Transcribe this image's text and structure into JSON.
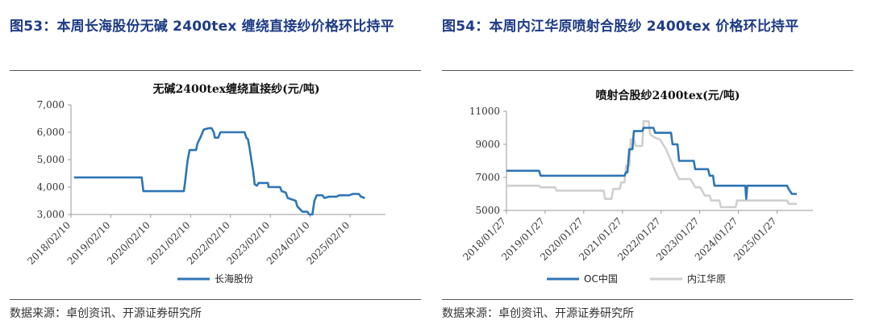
{
  "panels": [
    {
      "heading": "图53：本周长海股份无碱 2400tex 缠绕直接纱价格环比持平",
      "source": "数据来源：卓创资讯、开源证券研究所"
    },
    {
      "heading": "图54：本周内江华原喷射合股纱 2400tex 价格环比持平",
      "source": "数据来源：卓创资讯、开源证券研究所"
    }
  ],
  "chart_data": [
    {
      "type": "line",
      "title": "无碱2400tex缠绕直接纱(元/吨)",
      "xlabel": "",
      "ylabel": "",
      "ylim": [
        3000,
        7000
      ],
      "yticks": [
        3000,
        4000,
        5000,
        6000,
        7000
      ],
      "ytick_labels": [
        "3,000",
        "4,000",
        "5,000",
        "6,000",
        "7,000"
      ],
      "xlim": [
        "2018-02-10",
        "2025-12-31"
      ],
      "xtick_labels": [
        "2018/02/10",
        "2019/02/10",
        "2020/02/10",
        "2021/02/10",
        "2022/02/10",
        "2023/02/10",
        "2024/02/10",
        "2025/02/10"
      ],
      "grid": false,
      "legend": "bottom",
      "series": [
        {
          "name": "长海股份",
          "color": "#2e75b6",
          "points": [
            [
              "2018-03-10",
              4350
            ],
            [
              "2019-02-01",
              4350
            ],
            [
              "2019-11-20",
              4350
            ],
            [
              "2019-12-05",
              3850
            ],
            [
              "2020-12-10",
              3850
            ],
            [
              "2020-12-25",
              4300
            ],
            [
              "2021-01-05",
              4700
            ],
            [
              "2021-01-15",
              5000
            ],
            [
              "2021-02-01",
              5350
            ],
            [
              "2021-04-01",
              5350
            ],
            [
              "2021-04-15",
              5600
            ],
            [
              "2021-05-10",
              5800
            ],
            [
              "2021-06-10",
              6100
            ],
            [
              "2021-08-01",
              6150
            ],
            [
              "2021-08-20",
              6150
            ],
            [
              "2021-09-10",
              6000
            ],
            [
              "2021-09-20",
              5800
            ],
            [
              "2021-10-20",
              5800
            ],
            [
              "2021-11-10",
              6000
            ],
            [
              "2022-06-20",
              6000
            ],
            [
              "2022-07-05",
              5800
            ],
            [
              "2022-07-20",
              5750
            ],
            [
              "2022-08-05",
              5400
            ],
            [
              "2022-08-20",
              5000
            ],
            [
              "2022-09-05",
              4600
            ],
            [
              "2022-09-20",
              4100
            ],
            [
              "2022-10-10",
              4050
            ],
            [
              "2022-10-25",
              4150
            ],
            [
              "2023-01-20",
              4150
            ],
            [
              "2023-01-25",
              4000
            ],
            [
              "2023-05-10",
              4000
            ],
            [
              "2023-05-25",
              3850
            ],
            [
              "2023-07-01",
              3800
            ],
            [
              "2023-07-20",
              3600
            ],
            [
              "2023-10-01",
              3500
            ],
            [
              "2023-10-15",
              3300
            ],
            [
              "2023-12-01",
              3100
            ],
            [
              "2024-01-15",
              3100
            ],
            [
              "2024-02-01",
              3000
            ],
            [
              "2024-03-01",
              3000
            ],
            [
              "2024-03-20",
              3500
            ],
            [
              "2024-04-10",
              3700
            ],
            [
              "2024-06-01",
              3700
            ],
            [
              "2024-06-20",
              3600
            ],
            [
              "2024-08-01",
              3650
            ],
            [
              "2024-10-10",
              3650
            ],
            [
              "2024-11-01",
              3700
            ],
            [
              "2025-02-01",
              3700
            ],
            [
              "2025-03-10",
              3750
            ],
            [
              "2025-05-01",
              3750
            ],
            [
              "2025-05-20",
              3650
            ],
            [
              "2025-06-25",
              3600
            ]
          ]
        }
      ]
    },
    {
      "type": "line",
      "title": "喷射合股纱2400tex(元/吨)",
      "xlabel": "",
      "ylabel": "",
      "ylim": [
        5000,
        11000
      ],
      "yticks": [
        5000,
        7000,
        9000,
        11000
      ],
      "ytick_labels": [
        "5000",
        "7000",
        "9000",
        "11000"
      ],
      "xlim": [
        "2018-01-27",
        "2025-12-31"
      ],
      "xtick_labels": [
        "2018/01/27",
        "2019/01/27",
        "2020/01/27",
        "2021/01/27",
        "2022/01/27",
        "2023/01/27",
        "2024/01/27",
        "2025/01/27"
      ],
      "grid": false,
      "legend": "bottom",
      "series": [
        {
          "name": "OC中国",
          "color": "#2e75b6",
          "points": [
            [
              "2018-01-27",
              7400
            ],
            [
              "2018-12-01",
              7400
            ],
            [
              "2018-12-15",
              7100
            ],
            [
              "2021-02-15",
              7100
            ],
            [
              "2021-03-01",
              7300
            ],
            [
              "2021-03-15",
              7300
            ],
            [
              "2021-04-01",
              8700
            ],
            [
              "2021-05-01",
              8700
            ],
            [
              "2021-05-15",
              9800
            ],
            [
              "2021-08-01",
              9800
            ],
            [
              "2021-08-15",
              10000
            ],
            [
              "2021-11-15",
              10000
            ],
            [
              "2021-12-01",
              9700
            ],
            [
              "2022-05-01",
              9700
            ],
            [
              "2022-05-15",
              9000
            ],
            [
              "2022-07-01",
              9000
            ],
            [
              "2022-07-15",
              8000
            ],
            [
              "2022-12-01",
              8000
            ],
            [
              "2022-12-15",
              7500
            ],
            [
              "2023-04-15",
              7500
            ],
            [
              "2023-05-01",
              7100
            ],
            [
              "2023-06-01",
              7100
            ],
            [
              "2023-06-15",
              6500
            ],
            [
              "2024-04-01",
              6500
            ],
            [
              "2024-04-10",
              5700
            ],
            [
              "2024-04-20",
              6500
            ],
            [
              "2025-05-01",
              6500
            ],
            [
              "2025-05-15",
              6300
            ],
            [
              "2025-06-15",
              6000
            ],
            [
              "2025-08-01",
              6000
            ]
          ]
        },
        {
          "name": "内江华原",
          "color": "#cfcfcf",
          "points": [
            [
              "2018-01-27",
              6500
            ],
            [
              "2018-12-01",
              6500
            ],
            [
              "2018-12-15",
              6400
            ],
            [
              "2019-05-01",
              6400
            ],
            [
              "2019-05-15",
              6200
            ],
            [
              "2020-08-01",
              6200
            ],
            [
              "2020-08-15",
              5700
            ],
            [
              "2020-10-15",
              5700
            ],
            [
              "2020-11-01",
              6300
            ],
            [
              "2021-01-01",
              6300
            ],
            [
              "2021-01-15",
              6700
            ],
            [
              "2021-02-15",
              6700
            ],
            [
              "2021-03-01",
              7700
            ],
            [
              "2021-04-01",
              7700
            ],
            [
              "2021-04-15",
              9300
            ],
            [
              "2021-05-15",
              9300
            ],
            [
              "2021-06-01",
              8900
            ],
            [
              "2021-08-01",
              8900
            ],
            [
              "2021-08-15",
              10400
            ],
            [
              "2021-10-01",
              10400
            ],
            [
              "2021-10-15",
              9600
            ],
            [
              "2021-12-01",
              9400
            ],
            [
              "2022-01-15",
              9300
            ],
            [
              "2022-03-15",
              8700
            ],
            [
              "2022-05-01",
              8000
            ],
            [
              "2022-06-01",
              7500
            ],
            [
              "2022-07-15",
              6900
            ],
            [
              "2022-11-01",
              6900
            ],
            [
              "2022-12-15",
              6400
            ],
            [
              "2023-02-01",
              6400
            ],
            [
              "2023-03-15",
              5900
            ],
            [
              "2023-05-01",
              5900
            ],
            [
              "2023-05-15",
              5600
            ],
            [
              "2023-08-01",
              5600
            ],
            [
              "2023-08-15",
              5200
            ],
            [
              "2024-01-01",
              5200
            ],
            [
              "2024-01-15",
              5600
            ],
            [
              "2025-05-01",
              5600
            ],
            [
              "2025-05-15",
              5400
            ],
            [
              "2025-08-01",
              5400
            ]
          ]
        }
      ]
    }
  ]
}
